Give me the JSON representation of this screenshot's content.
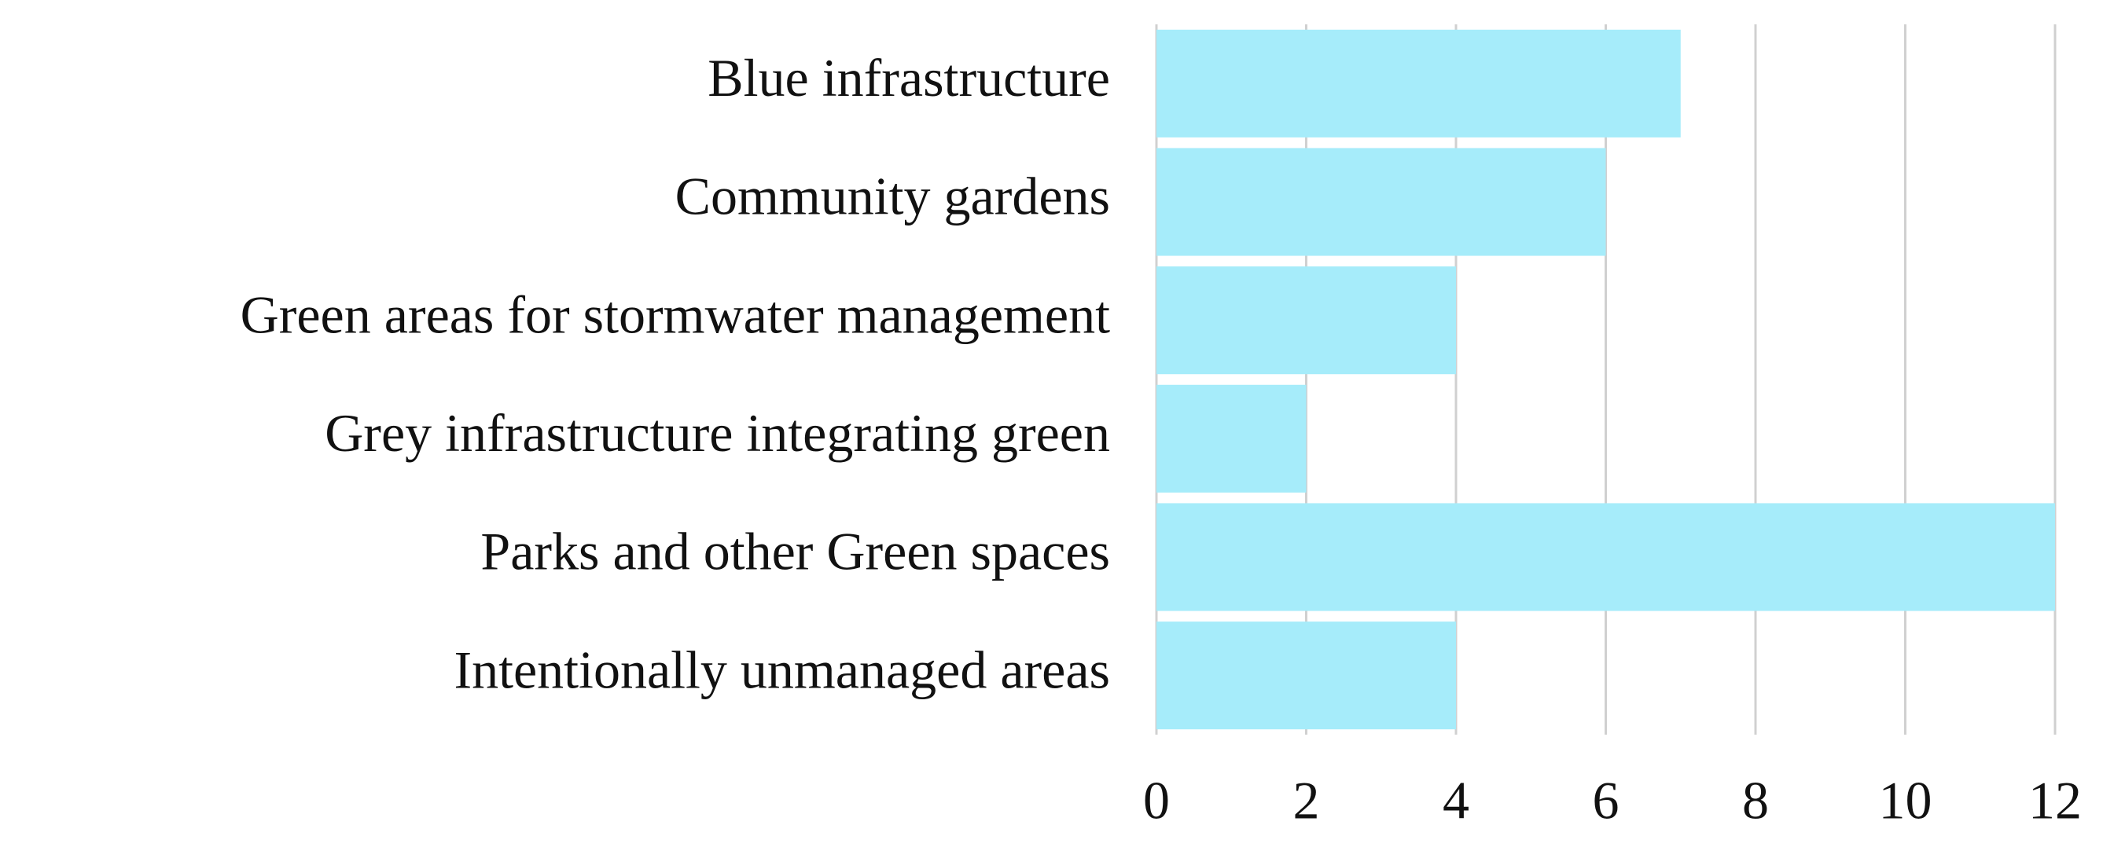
{
  "chart_data": {
    "type": "bar",
    "orientation": "horizontal",
    "categories": [
      "Blue infrastructure",
      "Community gardens",
      "Green areas for stormwater management",
      "Grey infrastructure integrating green",
      "Parks and other Green spaces",
      "Intentionally unmanaged areas"
    ],
    "values": [
      7,
      6,
      4,
      2,
      12,
      4
    ],
    "color": "#a6ecfa",
    "xlim": [
      0,
      12
    ],
    "xticks": [
      0,
      2,
      4,
      6,
      8,
      10,
      12
    ],
    "grid": true
  }
}
